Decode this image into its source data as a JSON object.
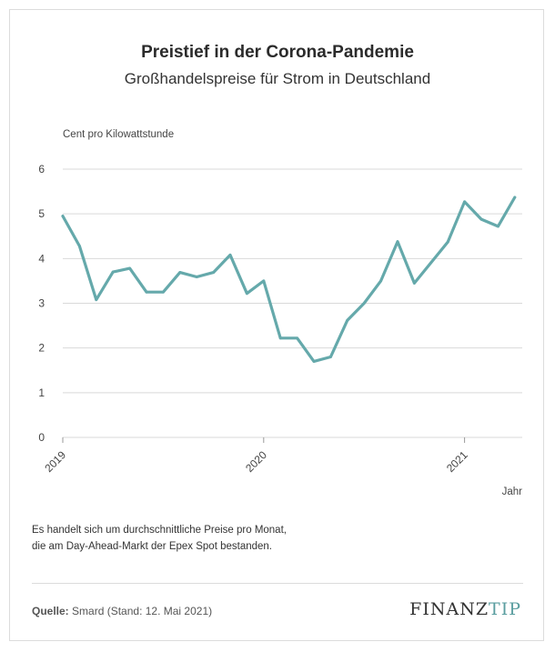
{
  "header": {
    "title": "Preistief in der Corona-Pandemie",
    "subtitle": "Großhandelspreise für Strom in Deutschland"
  },
  "footer": {
    "note_line1": "Es handelt sich um durchschnittliche Preise pro Monat,",
    "note_line2": "die am Day-Ahead-Markt der Epex Spot bestanden.",
    "source_label": "Quelle:",
    "source_text": "Smard (Stand: 12. Mai 2021)",
    "logo_main": "FINANZ",
    "logo_accent": "TIP"
  },
  "colors": {
    "line": "#65a9ab",
    "grid": "#d9d9d9",
    "axis": "#999999"
  },
  "chart_data": {
    "type": "line",
    "title": "Preistief in der Corona-Pandemie",
    "subtitle": "Großhandelspreise für Strom in Deutschland",
    "ylabel": "Cent pro Kilowattstunde",
    "xlabel": "Jahr",
    "ylim": [
      0,
      6
    ],
    "yticks": [
      0,
      1,
      2,
      3,
      4,
      5,
      6
    ],
    "xticks": [
      "2019",
      "2020",
      "2021"
    ],
    "grid": true,
    "series": [
      {
        "months": [
          "2019-01",
          "2019-02",
          "2019-03",
          "2019-04",
          "2019-05",
          "2019-06",
          "2019-07",
          "2019-08",
          "2019-09",
          "2019-10",
          "2019-11",
          "2019-12",
          "2020-01",
          "2020-02",
          "2020-03",
          "2020-04",
          "2020-05",
          "2020-06",
          "2020-07",
          "2020-08",
          "2020-09",
          "2020-10",
          "2020-11",
          "2020-12",
          "2021-01",
          "2021-02",
          "2021-03",
          "2021-04"
        ],
        "values": [
          4.95,
          4.28,
          3.08,
          3.7,
          3.78,
          3.25,
          3.25,
          3.69,
          3.59,
          3.69,
          4.08,
          3.22,
          3.5,
          2.22,
          2.22,
          1.7,
          1.8,
          2.62,
          3.0,
          3.5,
          4.38,
          3.45,
          3.91,
          4.37,
          5.27,
          4.88,
          4.72,
          5.37
        ]
      }
    ]
  }
}
